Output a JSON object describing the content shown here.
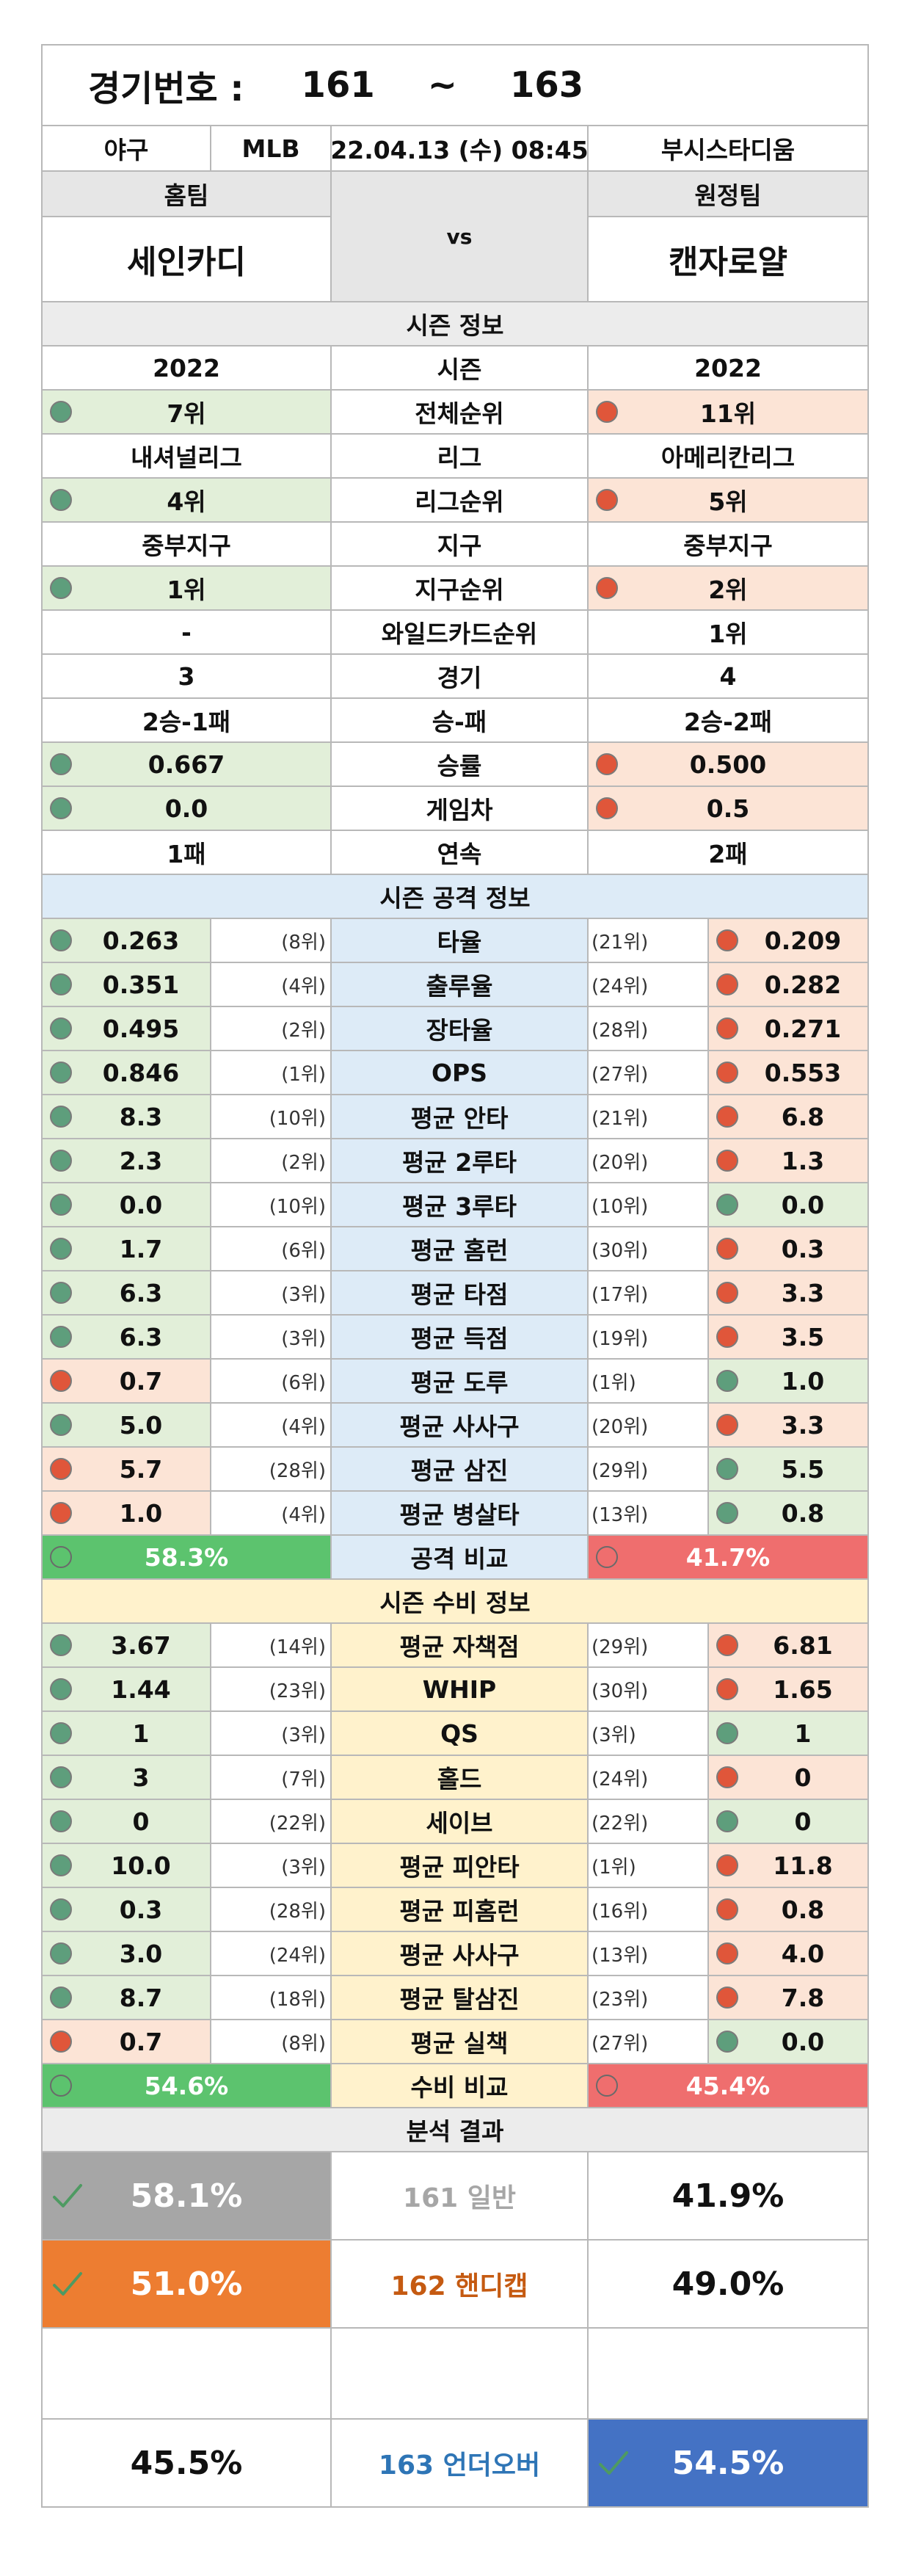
{
  "header": {
    "title_label": "경기번호 :",
    "start": "161",
    "tilde": "~",
    "end": "163"
  },
  "game": {
    "sport": "야구",
    "league": "MLB",
    "datetime": "22.04.13 (수) 08:45",
    "stadium": "부시스타디움"
  },
  "teams": {
    "home_label": "홈팀",
    "away_label": "원정팀",
    "home": "세인카디",
    "away": "캔자로얄",
    "vs": "vs"
  },
  "season": {
    "title": "시즌 정보",
    "rows": [
      {
        "label": "시즌",
        "home": "2022",
        "away": "2022",
        "hdot": "",
        "adot": ""
      },
      {
        "label": "전체순위",
        "home": "7위",
        "away": "11위",
        "hdot": "g",
        "adot": "r"
      },
      {
        "label": "리그",
        "home": "내셔널리그",
        "away": "아메리칸리그",
        "hdot": "",
        "adot": ""
      },
      {
        "label": "리그순위",
        "home": "4위",
        "away": "5위",
        "hdot": "g",
        "adot": "r"
      },
      {
        "label": "지구",
        "home": "중부지구",
        "away": "중부지구",
        "hdot": "",
        "adot": ""
      },
      {
        "label": "지구순위",
        "home": "1위",
        "away": "2위",
        "hdot": "g",
        "adot": "r"
      },
      {
        "label": "와일드카드순위",
        "home": "-",
        "away": "1위",
        "hdot": "",
        "adot": ""
      },
      {
        "label": "경기",
        "home": "3",
        "away": "4",
        "hdot": "",
        "adot": ""
      },
      {
        "label": "승-패",
        "home": "2승-1패",
        "away": "2승-2패",
        "hdot": "",
        "adot": ""
      },
      {
        "label": "승률",
        "home": "0.667",
        "away": "0.500",
        "hdot": "g",
        "adot": "r"
      },
      {
        "label": "게임차",
        "home": "0.0",
        "away": "0.5",
        "hdot": "g",
        "adot": "r"
      },
      {
        "label": "연속",
        "home": "1패",
        "away": "2패",
        "hdot": "",
        "adot": ""
      }
    ]
  },
  "offense": {
    "title": "시즌 공격 정보",
    "rows": [
      {
        "label": "타율",
        "home": "0.263",
        "hrank": "(8위)",
        "arank": "(21위)",
        "away": "0.209",
        "hdot": "g",
        "adot": "r"
      },
      {
        "label": "출루율",
        "home": "0.351",
        "hrank": "(4위)",
        "arank": "(24위)",
        "away": "0.282",
        "hdot": "g",
        "adot": "r"
      },
      {
        "label": "장타율",
        "home": "0.495",
        "hrank": "(2위)",
        "arank": "(28위)",
        "away": "0.271",
        "hdot": "g",
        "adot": "r"
      },
      {
        "label": "OPS",
        "home": "0.846",
        "hrank": "(1위)",
        "arank": "(27위)",
        "away": "0.553",
        "hdot": "g",
        "adot": "r"
      },
      {
        "label": "평균 안타",
        "home": "8.3",
        "hrank": "(10위)",
        "arank": "(21위)",
        "away": "6.8",
        "hdot": "g",
        "adot": "r"
      },
      {
        "label": "평균 2루타",
        "home": "2.3",
        "hrank": "(2위)",
        "arank": "(20위)",
        "away": "1.3",
        "hdot": "g",
        "adot": "r"
      },
      {
        "label": "평균 3루타",
        "home": "0.0",
        "hrank": "(10위)",
        "arank": "(10위)",
        "away": "0.0",
        "hdot": "g",
        "adot": "g"
      },
      {
        "label": "평균 홈런",
        "home": "1.7",
        "hrank": "(6위)",
        "arank": "(30위)",
        "away": "0.3",
        "hdot": "g",
        "adot": "r"
      },
      {
        "label": "평균 타점",
        "home": "6.3",
        "hrank": "(3위)",
        "arank": "(17위)",
        "away": "3.3",
        "hdot": "g",
        "adot": "r"
      },
      {
        "label": "평균 득점",
        "home": "6.3",
        "hrank": "(3위)",
        "arank": "(19위)",
        "away": "3.5",
        "hdot": "g",
        "adot": "r"
      },
      {
        "label": "평균 도루",
        "home": "0.7",
        "hrank": "(6위)",
        "arank": "(1위)",
        "away": "1.0",
        "hdot": "r",
        "adot": "g"
      },
      {
        "label": "평균 사사구",
        "home": "5.0",
        "hrank": "(4위)",
        "arank": "(20위)",
        "away": "3.3",
        "hdot": "g",
        "adot": "r"
      },
      {
        "label": "평균 삼진",
        "home": "5.7",
        "hrank": "(28위)",
        "arank": "(29위)",
        "away": "5.5",
        "hdot": "r",
        "adot": "g"
      },
      {
        "label": "평균 병살타",
        "home": "1.0",
        "hrank": "(4위)",
        "arank": "(13위)",
        "away": "0.8",
        "hdot": "r",
        "adot": "g"
      }
    ],
    "compare": {
      "label": "공격 비교",
      "home": "58.3%",
      "away": "41.7%"
    }
  },
  "defense": {
    "title": "시즌 수비 정보",
    "rows": [
      {
        "label": "평균 자책점",
        "home": "3.67",
        "hrank": "(14위)",
        "arank": "(29위)",
        "away": "6.81",
        "hdot": "g",
        "adot": "r"
      },
      {
        "label": "WHIP",
        "home": "1.44",
        "hrank": "(23위)",
        "arank": "(30위)",
        "away": "1.65",
        "hdot": "g",
        "adot": "r"
      },
      {
        "label": "QS",
        "home": "1",
        "hrank": "(3위)",
        "arank": "(3위)",
        "away": "1",
        "hdot": "g",
        "adot": "g"
      },
      {
        "label": "홀드",
        "home": "3",
        "hrank": "(7위)",
        "arank": "(24위)",
        "away": "0",
        "hdot": "g",
        "adot": "r"
      },
      {
        "label": "세이브",
        "home": "0",
        "hrank": "(22위)",
        "arank": "(22위)",
        "away": "0",
        "hdot": "g",
        "adot": "g"
      },
      {
        "label": "평균 피안타",
        "home": "10.0",
        "hrank": "(3위)",
        "arank": "(1위)",
        "away": "11.8",
        "hdot": "g",
        "adot": "r"
      },
      {
        "label": "평균 피홈런",
        "home": "0.3",
        "hrank": "(28위)",
        "arank": "(16위)",
        "away": "0.8",
        "hdot": "g",
        "adot": "r"
      },
      {
        "label": "평균 사사구",
        "home": "3.0",
        "hrank": "(24위)",
        "arank": "(13위)",
        "away": "4.0",
        "hdot": "g",
        "adot": "r"
      },
      {
        "label": "평균 탈삼진",
        "home": "8.7",
        "hrank": "(18위)",
        "arank": "(23위)",
        "away": "7.8",
        "hdot": "g",
        "adot": "r"
      },
      {
        "label": "평균 실책",
        "home": "0.7",
        "hrank": "(8위)",
        "arank": "(27위)",
        "away": "0.0",
        "hdot": "r",
        "adot": "g"
      }
    ],
    "compare": {
      "label": "수비 비교",
      "home": "54.6%",
      "away": "45.4%"
    }
  },
  "analysis": {
    "title": "분석 결과",
    "rows": [
      {
        "num": "161",
        "type": "일반",
        "home": "58.1%",
        "away": "41.9%",
        "pick": "home",
        "color": "#a6a6a6",
        "labelcolor": "#a6a6a6"
      },
      {
        "num": "162",
        "type": "핸디캡",
        "home": "51.0%",
        "away": "49.0%",
        "pick": "home",
        "color": "#ed7d31",
        "labelcolor": "#c55a11"
      },
      {
        "num": "163",
        "type": "언더오버",
        "home": "45.5%",
        "away": "54.5%",
        "pick": "away",
        "color": "#4472c4",
        "labelcolor": "#2e75b6"
      }
    ]
  }
}
